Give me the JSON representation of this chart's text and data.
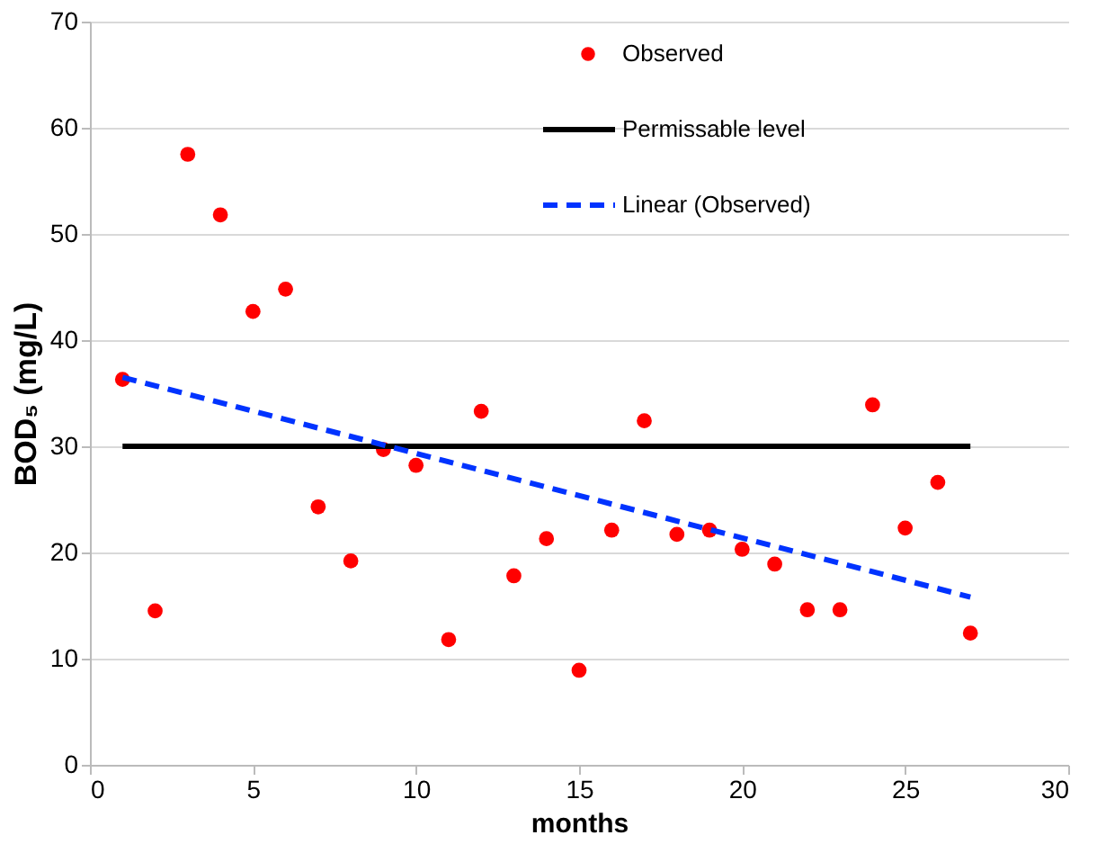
{
  "chart_data": {
    "type": "scatter",
    "xlabel": "months",
    "ylabel": "BOD₅ (mg/L)",
    "xlim": [
      0,
      30
    ],
    "xticks": [
      0,
      5,
      10,
      15,
      20,
      25,
      30
    ],
    "ylim": [
      0,
      70
    ],
    "yticks": [
      0,
      10,
      20,
      30,
      40,
      50,
      60,
      70
    ],
    "grid": "y",
    "legend": "top right",
    "series": [
      {
        "name": "Observed",
        "type": "scatter",
        "marker": "circle",
        "color": "#ff0000",
        "x": [
          1,
          2,
          3,
          4,
          5,
          6,
          7,
          8,
          9,
          10,
          11,
          12,
          13,
          14,
          15,
          16,
          17,
          18,
          19,
          20,
          21,
          22,
          23,
          24,
          25,
          26,
          27
        ],
        "values": [
          36.3,
          14.5,
          57.5,
          51.8,
          42.7,
          44.8,
          24.3,
          19.2,
          29.7,
          28.2,
          11.8,
          33.3,
          17.8,
          21.3,
          8.9,
          22.1,
          32.4,
          21.7,
          22.1,
          20.3,
          18.9,
          14.6,
          14.6,
          33.9,
          22.3,
          26.6,
          12.4
        ]
      },
      {
        "name": "Permissable level",
        "type": "line",
        "marker": "none",
        "line_style": "solid",
        "color": "#000000",
        "x": [
          1,
          27
        ],
        "values": [
          30,
          30
        ]
      },
      {
        "name": "Linear (Observed)",
        "type": "line",
        "marker": "none",
        "line_style": "dashed",
        "color": "#0033ff",
        "x": [
          1,
          27
        ],
        "values": [
          36.5,
          15.8
        ]
      }
    ]
  }
}
